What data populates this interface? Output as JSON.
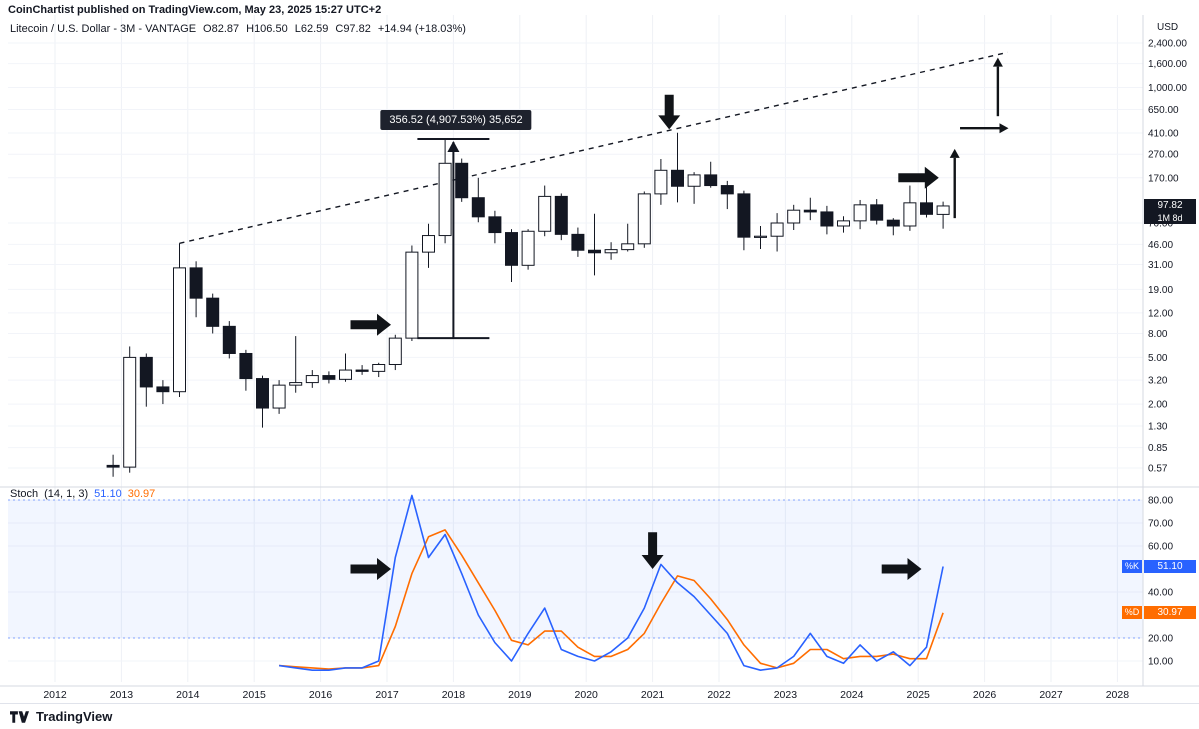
{
  "header": {
    "attribution": "CoinChartist published on TradingView.com, May 23, 2025 15:27 UTC+2"
  },
  "legend": {
    "title": "Litecoin / U.S. Dollar - 3M - VANTAGE",
    "open": "O82.87",
    "high": "H106.50",
    "low": "L62.59",
    "close": "C97.82",
    "change": "+14.94 (+18.03%)"
  },
  "price_axis": {
    "currency": "USD",
    "ticks": [
      {
        "v": 2400,
        "label": "2,400.00"
      },
      {
        "v": 1600,
        "label": "1,600.00"
      },
      {
        "v": 1000,
        "label": "1,000.00"
      },
      {
        "v": 650,
        "label": "650.00"
      },
      {
        "v": 410,
        "label": "410.00"
      },
      {
        "v": 270,
        "label": "270.00"
      },
      {
        "v": 170,
        "label": "170.00"
      },
      {
        "v": 70,
        "label": "70.00"
      },
      {
        "v": 46,
        "label": "46.00"
      },
      {
        "v": 31,
        "label": "31.00"
      },
      {
        "v": 19,
        "label": "19.00"
      },
      {
        "v": 12,
        "label": "12.00"
      },
      {
        "v": 8,
        "label": "8.00"
      },
      {
        "v": 5,
        "label": "5.00"
      },
      {
        "v": 3.2,
        "label": "3.20"
      },
      {
        "v": 2,
        "label": "2.00"
      },
      {
        "v": 1.3,
        "label": "1.30"
      },
      {
        "v": 0.85,
        "label": "0.85"
      },
      {
        "v": 0.57,
        "label": "0.57"
      }
    ],
    "last": {
      "value": 97.82,
      "label": "97.82",
      "countdown": "1M 8d",
      "badge_color": "#131722"
    }
  },
  "stoch": {
    "title": "Stoch",
    "params": "(14, 1, 3)",
    "k_label": "%K",
    "d_label": "%D",
    "k_value": "51.10",
    "d_value": "30.97",
    "colors": {
      "k": "#2962ff",
      "d": "#ff6d00",
      "band": "rgba(41,98,255,0.06)"
    },
    "band": [
      20,
      80
    ],
    "ticks": [
      {
        "v": 80,
        "label": "80.00"
      },
      {
        "v": 70,
        "label": "70.00"
      },
      {
        "v": 60,
        "label": "60.00"
      },
      {
        "v": 40,
        "label": "40.00"
      },
      {
        "v": 20,
        "label": "20.00"
      },
      {
        "v": 10,
        "label": "10.00"
      }
    ]
  },
  "time_axis": {
    "years": [
      "2012",
      "2013",
      "2014",
      "2015",
      "2016",
      "2017",
      "2018",
      "2019",
      "2020",
      "2021",
      "2022",
      "2023",
      "2024",
      "2025",
      "2026",
      "2027",
      "2028"
    ]
  },
  "footer": {
    "brand": "TradingView"
  },
  "chart_data": {
    "type": "candlestick",
    "title": "Litecoin / U.S. Dollar, 3M bars (VANTAGE), logarithmic price scale",
    "x_unit": "decimal_year",
    "x_range": [
      2012,
      2028
    ],
    "price_range_log": [
      0.5,
      2600
    ],
    "grid": true,
    "candles": [
      [
        2012.875,
        0.6,
        0.74,
        0.48,
        0.58
      ],
      [
        2013.125,
        0.58,
        6.2,
        0.52,
        5.0
      ],
      [
        2013.375,
        5.0,
        5.4,
        1.9,
        2.8
      ],
      [
        2013.625,
        2.8,
        3.2,
        2.0,
        2.55
      ],
      [
        2013.875,
        2.55,
        47.0,
        2.3,
        29.0
      ],
      [
        2014.125,
        29.0,
        33.0,
        11.0,
        16.0
      ],
      [
        2014.375,
        16.0,
        17.5,
        8.0,
        9.2
      ],
      [
        2014.625,
        9.2,
        10.2,
        4.9,
        5.4
      ],
      [
        2014.875,
        5.4,
        5.8,
        2.6,
        3.3
      ],
      [
        2015.125,
        3.3,
        3.5,
        1.26,
        1.85
      ],
      [
        2015.375,
        1.85,
        3.2,
        1.65,
        2.9
      ],
      [
        2015.625,
        2.9,
        7.6,
        2.5,
        3.05
      ],
      [
        2015.875,
        3.05,
        3.9,
        2.75,
        3.5
      ],
      [
        2016.125,
        3.5,
        3.8,
        3.0,
        3.25
      ],
      [
        2016.375,
        3.25,
        5.4,
        3.1,
        3.9
      ],
      [
        2016.625,
        3.9,
        4.3,
        3.55,
        3.8
      ],
      [
        2016.875,
        3.8,
        4.5,
        3.4,
        4.35
      ],
      [
        2017.125,
        4.35,
        7.8,
        3.9,
        7.3
      ],
      [
        2017.375,
        7.3,
        45.0,
        6.9,
        39.5
      ],
      [
        2017.625,
        39.5,
        69.0,
        29.0,
        54.7
      ],
      [
        2017.875,
        54.7,
        363.8,
        47.0,
        226.0
      ],
      [
        2018.125,
        226.0,
        248.0,
        106.0,
        115.0
      ],
      [
        2018.375,
        115.0,
        170.0,
        71.0,
        79.0
      ],
      [
        2018.625,
        79.0,
        89.0,
        47.0,
        58.0
      ],
      [
        2018.875,
        58.0,
        62.0,
        22.0,
        30.5
      ],
      [
        2019.125,
        30.5,
        62.0,
        28.0,
        59.5
      ],
      [
        2019.375,
        59.5,
        146.0,
        54.0,
        118.0
      ],
      [
        2019.625,
        118.0,
        125.0,
        50.0,
        56.0
      ],
      [
        2019.875,
        56.0,
        64.0,
        36.0,
        41.0
      ],
      [
        2020.125,
        41.0,
        84.0,
        25.0,
        39.0
      ],
      [
        2020.375,
        39.0,
        48.0,
        34.0,
        41.5
      ],
      [
        2020.625,
        41.5,
        69.0,
        40.0,
        46.5
      ],
      [
        2020.875,
        46.5,
        130.0,
        43.0,
        124.0
      ],
      [
        2021.125,
        124.0,
        246.0,
        100.0,
        197.0
      ],
      [
        2021.375,
        197.0,
        412.0,
        105.0,
        144.0
      ],
      [
        2021.625,
        144.0,
        190.0,
        102.0,
        180.0
      ],
      [
        2021.875,
        180.0,
        233.0,
        140.0,
        146.0
      ],
      [
        2022.125,
        146.0,
        160.0,
        92.0,
        124.0
      ],
      [
        2022.375,
        124.0,
        132.0,
        41.0,
        53.0
      ],
      [
        2022.625,
        53.0,
        66.0,
        42.0,
        54.0
      ],
      [
        2022.875,
        54.0,
        85.0,
        40.0,
        70.0
      ],
      [
        2023.125,
        70.0,
        100.0,
        61.0,
        90.0
      ],
      [
        2023.375,
        90.0,
        115.0,
        74.0,
        87.0
      ],
      [
        2023.625,
        87.0,
        98.0,
        56.0,
        66.0
      ],
      [
        2023.875,
        66.0,
        80.0,
        58.0,
        73.0
      ],
      [
        2024.125,
        73.0,
        110.0,
        62.0,
        100.0
      ],
      [
        2024.375,
        100.0,
        112.0,
        68.0,
        74.0
      ],
      [
        2024.625,
        74.0,
        77.0,
        55.0,
        66.0
      ],
      [
        2024.875,
        66.0,
        146.0,
        60.0,
        104.0
      ],
      [
        2025.125,
        104.0,
        146.0,
        78.0,
        83.0
      ],
      [
        2025.375,
        82.87,
        106.5,
        62.59,
        97.82
      ]
    ],
    "trendline": {
      "style": "dashed",
      "x1": 2013.875,
      "y1": 47,
      "x2": 2026.35,
      "y2": 2000
    },
    "measure": {
      "t": 2018.0,
      "v_from": 7.3,
      "v_to": 364,
      "label": "356.52 (4,907.53%) 35,652"
    },
    "price_annotations": [
      {
        "style": "fat",
        "dir": "right",
        "t1": 2016.45,
        "v1": 9.5,
        "t2": 2017.06,
        "v2": 9.5
      },
      {
        "style": "fat",
        "dir": "down",
        "t1": 2021.25,
        "v1": 870,
        "t2": 2021.25,
        "v2": 440
      },
      {
        "style": "fat",
        "dir": "right",
        "t1": 2024.7,
        "v1": 170,
        "t2": 2025.31,
        "v2": 170
      },
      {
        "style": "thin",
        "dir": "up",
        "t1": 2025.55,
        "v1": 77,
        "t2": 2025.55,
        "v2": 300
      },
      {
        "style": "thin",
        "dir": "right",
        "t1": 2025.63,
        "v1": 450,
        "t2": 2026.36,
        "v2": 450
      },
      {
        "style": "thin",
        "dir": "up",
        "t1": 2026.2,
        "v1": 570,
        "t2": 2026.2,
        "v2": 1800
      }
    ],
    "stoch_series": {
      "type": "line",
      "k": [
        [
          2015.375,
          8
        ],
        [
          2015.625,
          7
        ],
        [
          2015.875,
          6
        ],
        [
          2016.125,
          6
        ],
        [
          2016.375,
          7
        ],
        [
          2016.625,
          7
        ],
        [
          2016.875,
          10
        ],
        [
          2017.125,
          55
        ],
        [
          2017.375,
          82
        ],
        [
          2017.625,
          55
        ],
        [
          2017.875,
          65
        ],
        [
          2018.125,
          48
        ],
        [
          2018.375,
          30
        ],
        [
          2018.625,
          18
        ],
        [
          2018.875,
          10
        ],
        [
          2019.125,
          22
        ],
        [
          2019.375,
          33
        ],
        [
          2019.625,
          15
        ],
        [
          2019.875,
          12
        ],
        [
          2020.125,
          10
        ],
        [
          2020.375,
          14
        ],
        [
          2020.625,
          20
        ],
        [
          2020.875,
          33
        ],
        [
          2021.125,
          52
        ],
        [
          2021.375,
          44
        ],
        [
          2021.625,
          38
        ],
        [
          2021.875,
          30
        ],
        [
          2022.125,
          22
        ],
        [
          2022.375,
          8
        ],
        [
          2022.625,
          6
        ],
        [
          2022.875,
          7
        ],
        [
          2023.125,
          12
        ],
        [
          2023.375,
          22
        ],
        [
          2023.625,
          12
        ],
        [
          2023.875,
          9
        ],
        [
          2024.125,
          17
        ],
        [
          2024.375,
          10
        ],
        [
          2024.625,
          14
        ],
        [
          2024.875,
          8
        ],
        [
          2025.125,
          16
        ],
        [
          2025.375,
          51.1
        ]
      ],
      "d": [
        [
          2015.375,
          8
        ],
        [
          2015.625,
          7.5
        ],
        [
          2015.875,
          7
        ],
        [
          2016.125,
          6.5
        ],
        [
          2016.375,
          7
        ],
        [
          2016.625,
          7
        ],
        [
          2016.875,
          8
        ],
        [
          2017.125,
          25
        ],
        [
          2017.375,
          48
        ],
        [
          2017.625,
          64
        ],
        [
          2017.875,
          67
        ],
        [
          2018.125,
          56
        ],
        [
          2018.375,
          44
        ],
        [
          2018.625,
          32
        ],
        [
          2018.875,
          19
        ],
        [
          2019.125,
          17
        ],
        [
          2019.375,
          23
        ],
        [
          2019.625,
          23
        ],
        [
          2019.875,
          16
        ],
        [
          2020.125,
          12
        ],
        [
          2020.375,
          12
        ],
        [
          2020.625,
          15
        ],
        [
          2020.875,
          22
        ],
        [
          2021.125,
          35
        ],
        [
          2021.375,
          47
        ],
        [
          2021.625,
          45
        ],
        [
          2021.875,
          37
        ],
        [
          2022.125,
          28
        ],
        [
          2022.375,
          17
        ],
        [
          2022.625,
          9
        ],
        [
          2022.875,
          7
        ],
        [
          2023.125,
          9
        ],
        [
          2023.375,
          15
        ],
        [
          2023.625,
          15
        ],
        [
          2023.875,
          11
        ],
        [
          2024.125,
          12
        ],
        [
          2024.375,
          12
        ],
        [
          2024.625,
          13
        ],
        [
          2024.875,
          11
        ],
        [
          2025.125,
          11
        ],
        [
          2025.375,
          30.97
        ]
      ]
    },
    "stoch_annotations": [
      {
        "style": "fat",
        "dir": "right",
        "t1": 2016.45,
        "v1": 50,
        "t2": 2017.06,
        "v2": 50
      },
      {
        "style": "fat",
        "dir": "down",
        "t1": 2021.0,
        "v1": 66,
        "t2": 2021.0,
        "v2": 50
      },
      {
        "style": "fat",
        "dir": "right",
        "t1": 2024.45,
        "v1": 50,
        "t2": 2025.05,
        "v2": 50
      }
    ]
  }
}
